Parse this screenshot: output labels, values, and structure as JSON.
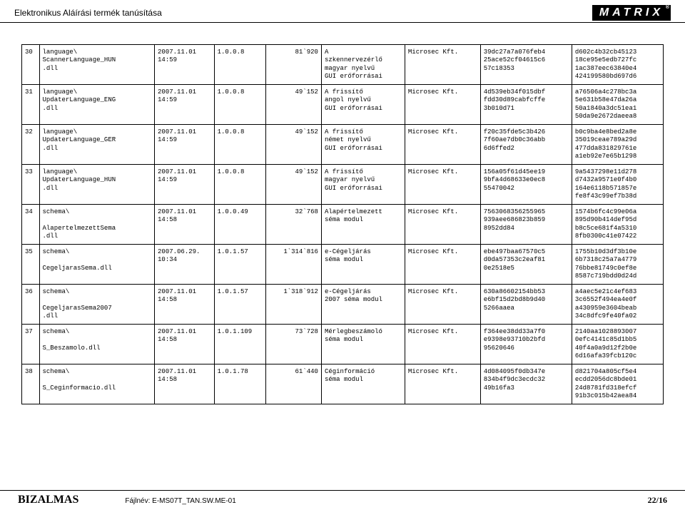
{
  "header": {
    "title": "Elektronikus Aláírási termék tanúsítása",
    "logo": "MATRIX"
  },
  "rows": [
    {
      "n": "30",
      "file": "language\\\nScannerLanguage_HUN\n.dll",
      "date": "2007.11.01\n14:59",
      "ver": "1.0.0.8",
      "size": "81`920",
      "desc": "A\nszkennervezérlő\nmagyar nyelvű\nGUI erőforrásai",
      "vendor": "Microsec Kft.",
      "hash1": "39dc27a7a076feb4\n25ace52cf04615c6\n57c18353",
      "hash2": "d602c4b32cb45123\n18ce95e5edb727fc\n1ac387eec63840e4\n424199580bd697d6"
    },
    {
      "n": "31",
      "file": "language\\\nUpdaterLanguage_ENG\n.dll",
      "date": "2007.11.01\n14:59",
      "ver": "1.0.0.8",
      "size": "49`152",
      "desc": "A frissítő\nangol nyelvű\nGUI erőforrásai",
      "vendor": "Microsec Kft.",
      "hash1": "4d539eb34f015dbf\nfdd30d89cabfcffe\n3b010d71",
      "hash2": "a76506a4c278bc3a\n5e631b58e47da26a\n50a1840a3dc51ea1\n50da9e2672daeea8"
    },
    {
      "n": "32",
      "file": "language\\\nUpdaterLanguage_GER\n.dll",
      "date": "2007.11.01\n14:59",
      "ver": "1.0.0.8",
      "size": "49`152",
      "desc": "A frissítő\nnémet nyelvű\nGUI erőforrásai",
      "vendor": "Microsec Kft.",
      "hash1": "f20c35fde5c3b426\n7f60ae7db0c36abb\n6d6ffed2",
      "hash2": "b0c9ba4e8bed2a8e\n35019ceae789a29d\n477dda831829761e\na1eb92e7e65b1298"
    },
    {
      "n": "33",
      "file": "language\\\nUpdaterLanguage_HUN\n.dll",
      "date": "2007.11.01\n14:59",
      "ver": "1.0.0.8",
      "size": "49`152",
      "desc": "A frissítő\nmagyar nyelvű\nGUI erőforrásai",
      "vendor": "Microsec Kft.",
      "hash1": "156a05f61d45ee19\n9bfa4d68633e0ec8\n55470042",
      "hash2": "9a5437298e11d278\nd7432a9571e0f4b0\n164e6118b571857e\nfe8f43c99ef7b38d"
    },
    {
      "n": "34",
      "file": "schema\\\n\nAlapertelmezettSema\n.dll",
      "date": "2007.11.01\n14:58",
      "ver": "1.0.0.49",
      "size": "32`768",
      "desc": "Alapértelmezett\nséma modul",
      "vendor": "Microsec Kft.",
      "hash1": "7563068356255965\n939aee686823b859\n8952dd84",
      "hash2": "1574b6fc4c99e06a\n895d90b414def95d\nb8c5ce681f4a5310\n8fb0300c41e07422"
    },
    {
      "n": "35",
      "file": "schema\\\n\nCegeljarasSema.dll",
      "date": "2007.06.29.\n10:34",
      "ver": "1.0.1.57",
      "size": "1`314`816",
      "desc": "e-Cégeljárás\nséma modul",
      "vendor": "Microsec Kft.",
      "hash1": "ebe497baa67570c5\nd0da57353c2eaf81\n0e2518e5",
      "hash2": "1755b10d3df3b10e\n6b7318c25a7a4779\n76bbe81749c0ef8e\n8587c719bdd0d24d"
    },
    {
      "n": "36",
      "file": "schema\\\n\nCegeljarasSema2007\n.dll",
      "date": "2007.11.01\n14:58",
      "ver": "1.0.1.57",
      "size": "1`318`912",
      "desc": "e-Cégeljárás\n2007 séma modul",
      "vendor": "Microsec Kft.",
      "hash1": "630a86602154bb53\ne6bf15d2bd8b9d40\n5266aaea",
      "hash2": "a4aec5e21c4ef683\n3c6552f494ea4e0f\na430959e3604beab\n34c8dfc9fe40fa02"
    },
    {
      "n": "37",
      "file": "schema\\\n\nS_Beszamolo.dll",
      "date": "2007.11.01\n14:58",
      "ver": "1.0.1.109",
      "size": "73`728",
      "desc": "Mérlegbeszámoló\nséma modul",
      "vendor": "Microsec Kft.",
      "hash1": "f364ee38dd33a7f0\ne9398e93710b2bfd\n95620646",
      "hash2": "2140aa1028893007\n0efc4141c85d1bb5\n40f4a0a9d12f2b0e\n6d16afa39fcb120c"
    },
    {
      "n": "38",
      "file": "schema\\\n\nS_Ceginformacio.dll",
      "date": "2007.11.01\n14:58",
      "ver": "1.0.1.78",
      "size": "61`440",
      "desc": "Céginformáció\nséma modul",
      "vendor": "Microsec Kft.",
      "hash1": "4d084095f0db347e\n834b4f9dc3ecdc32\n49b16fa3",
      "hash2": "d821704a805cf5e4\necdd2056dc8bde01\n24d8781fd318efcf\n91b3c015b42aea84"
    }
  ],
  "footer": {
    "confidential": "BIZALMAS",
    "filename": "Fájlnév: E-MS07T_TAN.SW.ME-01",
    "page": "22/16"
  }
}
